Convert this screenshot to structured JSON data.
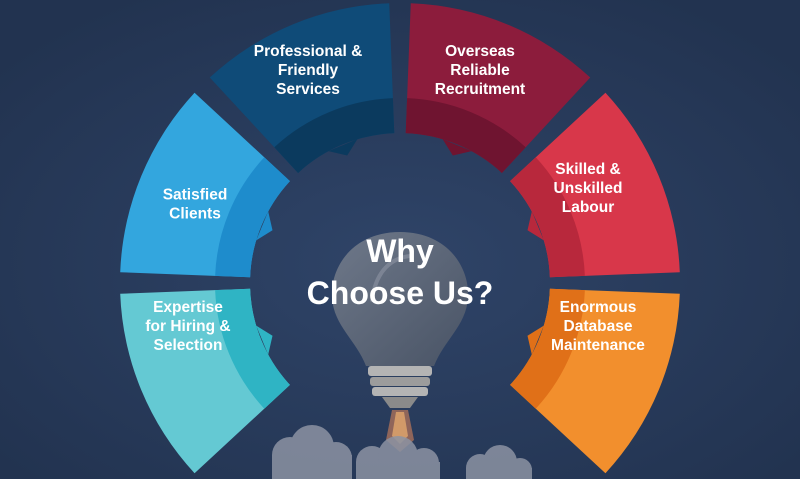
{
  "title": {
    "line1": "Why",
    "line2": "Choose Us?"
  },
  "segments": [
    {
      "id": "expertise",
      "lines": [
        "Expertise",
        "for Hiring &",
        "Selection"
      ],
      "color": "#64c9d3",
      "accent": "#2fb4c4"
    },
    {
      "id": "satisfied",
      "lines": [
        "Satisfied",
        "Clients"
      ],
      "color": "#33a6de",
      "accent": "#1e8ccc"
    },
    {
      "id": "professional",
      "lines": [
        "Professional &",
        "Friendly",
        "Services"
      ],
      "color": "#0f4b78",
      "accent": "#0b3a5e"
    },
    {
      "id": "overseas",
      "lines": [
        "Overseas",
        "Reliable",
        "Recruitment"
      ],
      "color": "#8c1c3c",
      "accent": "#6f1430"
    },
    {
      "id": "skilled",
      "lines": [
        "Skilled &",
        "Unskilled",
        "Labour"
      ],
      "color": "#d8374a",
      "accent": "#b8283c"
    },
    {
      "id": "database",
      "lines": [
        "Enormous",
        "Database",
        "Maintenance"
      ],
      "color": "#f28f2d",
      "accent": "#e07018"
    }
  ],
  "colors": {
    "background": "#283b5d",
    "bulb_glass": "#5c6676",
    "bulb_base": "#a9a9a9",
    "cloud": "#8c93a3"
  },
  "icons": [
    "lightbulb-icon",
    "rocket-icon",
    "cloud-icon"
  ]
}
